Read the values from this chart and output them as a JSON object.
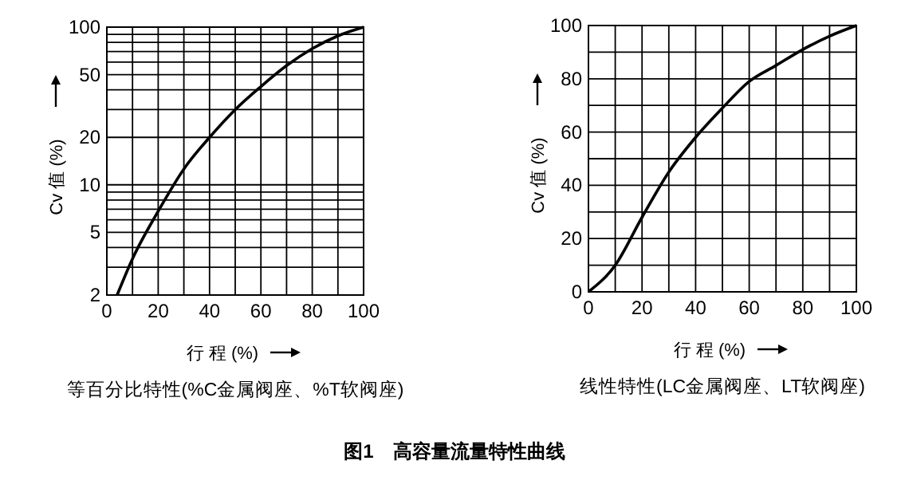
{
  "chart_data": [
    {
      "type": "line",
      "title": "等百分比特性(%C金属阀座、%T软阀座)",
      "xlabel": "行 程 (%)",
      "ylabel": "Cv 值 (%)",
      "log": "y",
      "grid": true,
      "x": [
        4,
        10,
        20,
        30,
        40,
        50,
        60,
        70,
        80,
        90,
        100
      ],
      "series": [
        {
          "color": "#000000",
          "values": [
            2,
            3.4,
            6.8,
            12.6,
            20,
            30,
            42,
            57,
            73,
            88,
            100
          ]
        }
      ],
      "xlim": [
        0,
        100
      ],
      "xticks": [
        0,
        20,
        40,
        60,
        80,
        100
      ],
      "ylim": [
        2,
        100
      ],
      "yticks": [
        2,
        {
          "value": 3,
          "label": null
        },
        {
          "value": 4,
          "label": null
        },
        5,
        {
          "value": 6,
          "label": null
        },
        {
          "value": 7,
          "label": null
        },
        {
          "value": 8,
          "label": null
        },
        {
          "value": 9,
          "label": null
        },
        10,
        20,
        {
          "value": 30,
          "label": null
        },
        {
          "value": 40,
          "label": null
        },
        50,
        {
          "value": 60,
          "label": null
        },
        {
          "value": 70,
          "label": null
        },
        {
          "value": 80,
          "label": null
        },
        {
          "value": 90,
          "label": null
        },
        100
      ],
      "annotations": [
        "图1　高容量流量特性曲线"
      ]
    },
    {
      "type": "line",
      "title": "线性特性(LC金属阀座、LT软阀座)",
      "xlabel": "行 程 (%)",
      "ylabel": "Cv 值 (%)",
      "grid": true,
      "x": [
        0,
        10,
        20,
        30,
        40,
        50,
        60,
        70,
        80,
        90,
        100
      ],
      "series": [
        {
          "color": "#000000",
          "values": [
            0,
            10,
            28,
            45,
            58,
            69,
            79,
            85,
            91,
            96,
            100
          ]
        }
      ],
      "xlim": [
        0,
        100
      ],
      "xticks": [
        0,
        20,
        40,
        60,
        80,
        100,
        {
          "value": 10,
          "label": null
        },
        {
          "value": 30,
          "label": null
        },
        {
          "value": 50,
          "label": null
        },
        {
          "value": 70,
          "label": null
        },
        {
          "value": 90,
          "label": null
        }
      ],
      "ylim": [
        0,
        100
      ],
      "yticks": [
        0,
        {
          "value": 10,
          "label": null
        },
        20,
        {
          "value": 30,
          "label": null
        },
        40,
        {
          "value": 50,
          "label": null
        },
        60,
        {
          "value": 70,
          "label": null
        },
        80,
        {
          "value": 90,
          "label": null
        },
        100
      ]
    }
  ]
}
